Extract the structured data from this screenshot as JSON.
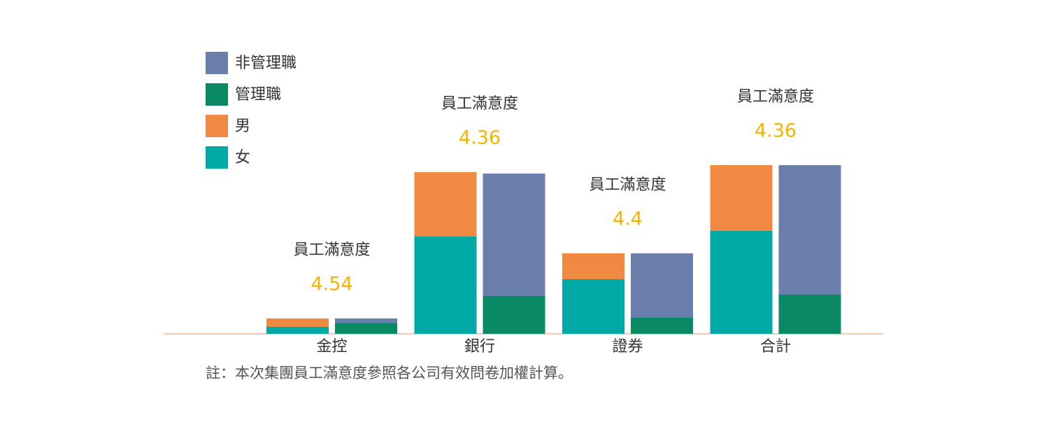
{
  "chart_data": {
    "type": "stacked_bar",
    "categories": [
      "金控",
      "銀行",
      "證券",
      "合計"
    ],
    "series": [
      {
        "name": "非管理職",
        "color": "#6a7fab",
        "stack": 1,
        "values": [
          7,
          175,
          92,
          185
        ]
      },
      {
        "name": "管理職",
        "color": "#0a8a64",
        "stack": 1,
        "values": [
          15,
          54,
          23,
          56
        ]
      },
      {
        "name": "男",
        "color": "#f08a43",
        "stack": 0,
        "values": [
          12,
          92,
          37,
          94
        ]
      },
      {
        "name": "女",
        "color": "#00a9a6",
        "stack": 0,
        "values": [
          10,
          139,
          78,
          147
        ]
      }
    ],
    "annotations": [
      {
        "label": "員工滿意度",
        "value": 4.54
      },
      {
        "label": "員工滿意度",
        "value": 4.36
      },
      {
        "label": "員工滿意度",
        "value": 4.4
      },
      {
        "label": "員工滿意度",
        "value": 4.36
      }
    ],
    "annotation_color": "#f5b400",
    "ylim": [
      0,
      250
    ],
    "note": "註：本次集團員工滿意度參照各公司有效問卷加權計算。"
  }
}
